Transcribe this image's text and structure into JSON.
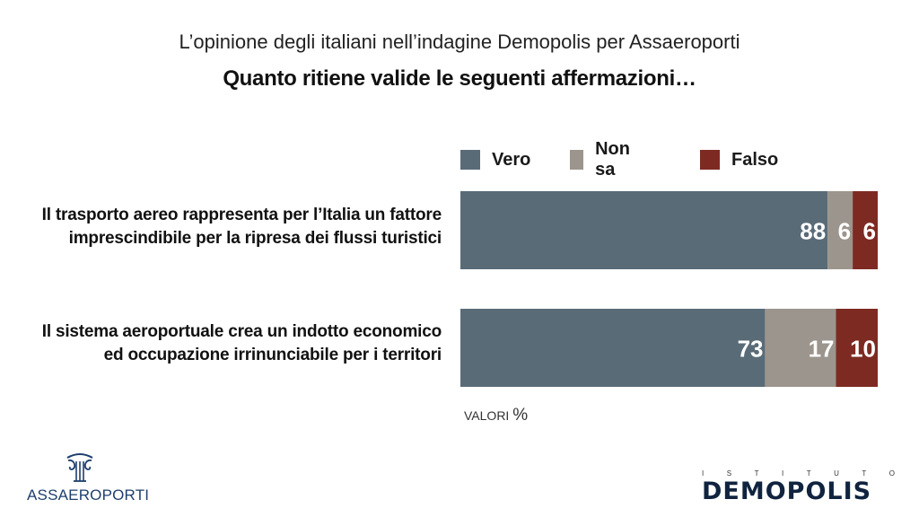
{
  "header": {
    "subtitle": "L’opinione degli italiani nell’indagine Demopolis per Assaeroporti",
    "title": "Quanto ritiene valide le seguenti affermazioni…"
  },
  "colors": {
    "vero": "#596b77",
    "non_sa": "#9c958d",
    "falso": "#7d2a22"
  },
  "chart_data": {
    "type": "bar",
    "orientation": "horizontal",
    "stacked": true,
    "categories": [
      [
        "Il trasporto aereo rappresenta per l’Italia un fattore",
        "imprescindibile per la ripresa dei flussi turistici"
      ],
      [
        "Il sistema aeroportuale crea un indotto economico",
        "ed occupazione irrinunciabile per i territori"
      ]
    ],
    "series": [
      {
        "name": "Vero",
        "values": [
          88,
          73
        ]
      },
      {
        "name": "Non sa",
        "values": [
          6,
          17
        ]
      },
      {
        "name": "Falso",
        "values": [
          6,
          10
        ]
      }
    ],
    "xlim": [
      0,
      100
    ],
    "legend": "top",
    "grid": false,
    "note": "VALORI",
    "note_unit": "%"
  },
  "logos": {
    "left": "ASSAEROPORTI",
    "right_tag": "ISTITUTO",
    "right_brand": "DEMOPOLIS"
  }
}
